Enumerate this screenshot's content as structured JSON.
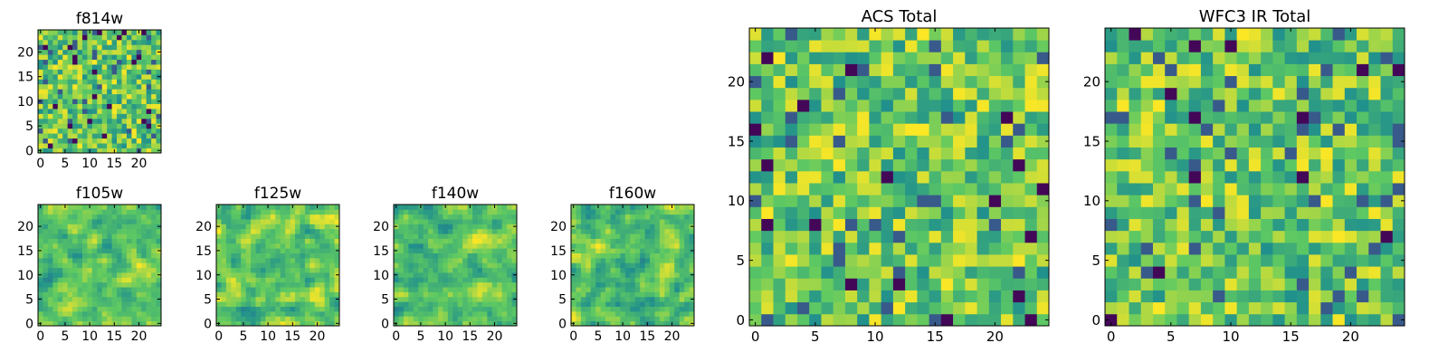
{
  "colormap": {
    "name": "viridis",
    "stops": [
      "#440154",
      "#3b528b",
      "#21918c",
      "#5ec962",
      "#fde725"
    ]
  },
  "chart_data": [
    {
      "type": "heatmap",
      "title": "f814w",
      "grid_size": [
        25,
        25
      ],
      "xlim": [
        -0.5,
        24.5
      ],
      "ylim": [
        -0.5,
        24.5
      ],
      "xticks": [
        0,
        5,
        10,
        15,
        20
      ],
      "yticks": [
        0,
        5,
        10,
        15,
        20
      ],
      "value_range": [
        0,
        1
      ],
      "seed": 814,
      "smooth": 0
    },
    {
      "type": "heatmap",
      "title": "f105w",
      "grid_size": [
        25,
        25
      ],
      "xlim": [
        -0.5,
        24.5
      ],
      "ylim": [
        -0.5,
        24.5
      ],
      "xticks": [
        0,
        5,
        10,
        15,
        20
      ],
      "yticks": [
        0,
        5,
        10,
        15,
        20
      ],
      "value_range": [
        0,
        1
      ],
      "seed": 105,
      "smooth": 1
    },
    {
      "type": "heatmap",
      "title": "f125w",
      "grid_size": [
        25,
        25
      ],
      "xlim": [
        -0.5,
        24.5
      ],
      "ylim": [
        -0.5,
        24.5
      ],
      "xticks": [
        0,
        5,
        10,
        15,
        20
      ],
      "yticks": [
        0,
        5,
        10,
        15,
        20
      ],
      "value_range": [
        0,
        1
      ],
      "seed": 125,
      "smooth": 1
    },
    {
      "type": "heatmap",
      "title": "f140w",
      "grid_size": [
        25,
        25
      ],
      "xlim": [
        -0.5,
        24.5
      ],
      "ylim": [
        -0.5,
        24.5
      ],
      "xticks": [
        0,
        5,
        10,
        15,
        20
      ],
      "yticks": [
        0,
        5,
        10,
        15,
        20
      ],
      "value_range": [
        0,
        1
      ],
      "seed": 140,
      "smooth": 1
    },
    {
      "type": "heatmap",
      "title": "f160w",
      "grid_size": [
        25,
        25
      ],
      "xlim": [
        -0.5,
        24.5
      ],
      "ylim": [
        -0.5,
        24.5
      ],
      "xticks": [
        0,
        5,
        10,
        15,
        20
      ],
      "yticks": [
        0,
        5,
        10,
        15,
        20
      ],
      "value_range": [
        0,
        1
      ],
      "seed": 160,
      "smooth": 1
    },
    {
      "type": "heatmap",
      "title": "ACS Total",
      "grid_size": [
        25,
        25
      ],
      "xlim": [
        -0.5,
        24.5
      ],
      "ylim": [
        -0.5,
        24.5
      ],
      "xticks": [
        0,
        5,
        10,
        15,
        20
      ],
      "yticks": [
        0,
        5,
        10,
        15,
        20
      ],
      "value_range": [
        0,
        1
      ],
      "seed": 1001,
      "smooth": 0
    },
    {
      "type": "heatmap",
      "title": "WFC3 IR Total",
      "grid_size": [
        25,
        25
      ],
      "xlim": [
        -0.5,
        24.5
      ],
      "ylim": [
        -0.5,
        24.5
      ],
      "xticks": [
        0,
        5,
        10,
        15,
        20
      ],
      "yticks": [
        0,
        5,
        10,
        15,
        20
      ],
      "value_range": [
        0,
        1
      ],
      "seed": 2002,
      "smooth": 0
    }
  ]
}
